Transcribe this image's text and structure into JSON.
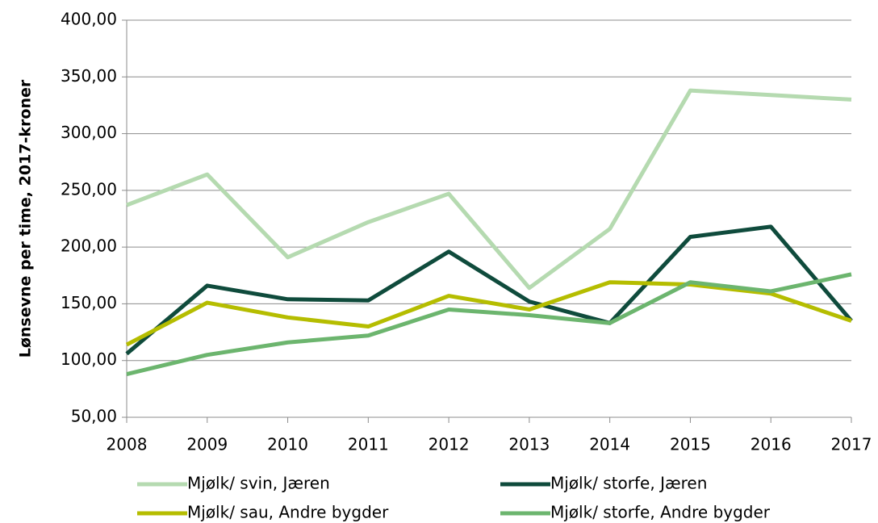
{
  "chart_data": {
    "type": "line",
    "y_label": "Lønsevne per time, 2017-kroner",
    "x": [
      2008,
      2009,
      2010,
      2011,
      2012,
      2013,
      2014,
      2015,
      2016,
      2017
    ],
    "xlim": [
      2008,
      2017
    ],
    "xticks": [
      2008,
      2009,
      2010,
      2011,
      2012,
      2013,
      2014,
      2015,
      2016,
      2017
    ],
    "ylim": [
      50,
      400
    ],
    "yticks": [
      {
        "value": 50,
        "label": "50,00"
      },
      {
        "value": 100,
        "label": "100,00"
      },
      {
        "value": 150,
        "label": "150,00"
      },
      {
        "value": 200,
        "label": "200,00"
      },
      {
        "value": 250,
        "label": "250,00"
      },
      {
        "value": 300,
        "label": "300,00"
      },
      {
        "value": 350,
        "label": "350,00"
      },
      {
        "value": 400,
        "label": "400,00"
      }
    ],
    "grid": true,
    "legend": "bottom",
    "series": [
      {
        "name": "Mjølk/ svin, Jæren",
        "color": "#b5dab0",
        "values": [
          237,
          264,
          191,
          222,
          247,
          164,
          216,
          338,
          334,
          330
        ]
      },
      {
        "name": "Mjølk/ storfe, Jæren",
        "color": "#0f4b3c",
        "values": [
          106,
          166,
          154,
          153,
          196,
          152,
          133,
          209,
          218,
          135
        ]
      },
      {
        "name": "Mjølk/ sau, Andre bygder",
        "color": "#b5bd00",
        "values": [
          114,
          151,
          138,
          130,
          157,
          145,
          169,
          167,
          159,
          135
        ]
      },
      {
        "name": "Mjølk/ storfe, Andre bygder",
        "color": "#6cb56e",
        "values": [
          88,
          105,
          116,
          122,
          145,
          140,
          133,
          169,
          161,
          176
        ]
      }
    ]
  }
}
